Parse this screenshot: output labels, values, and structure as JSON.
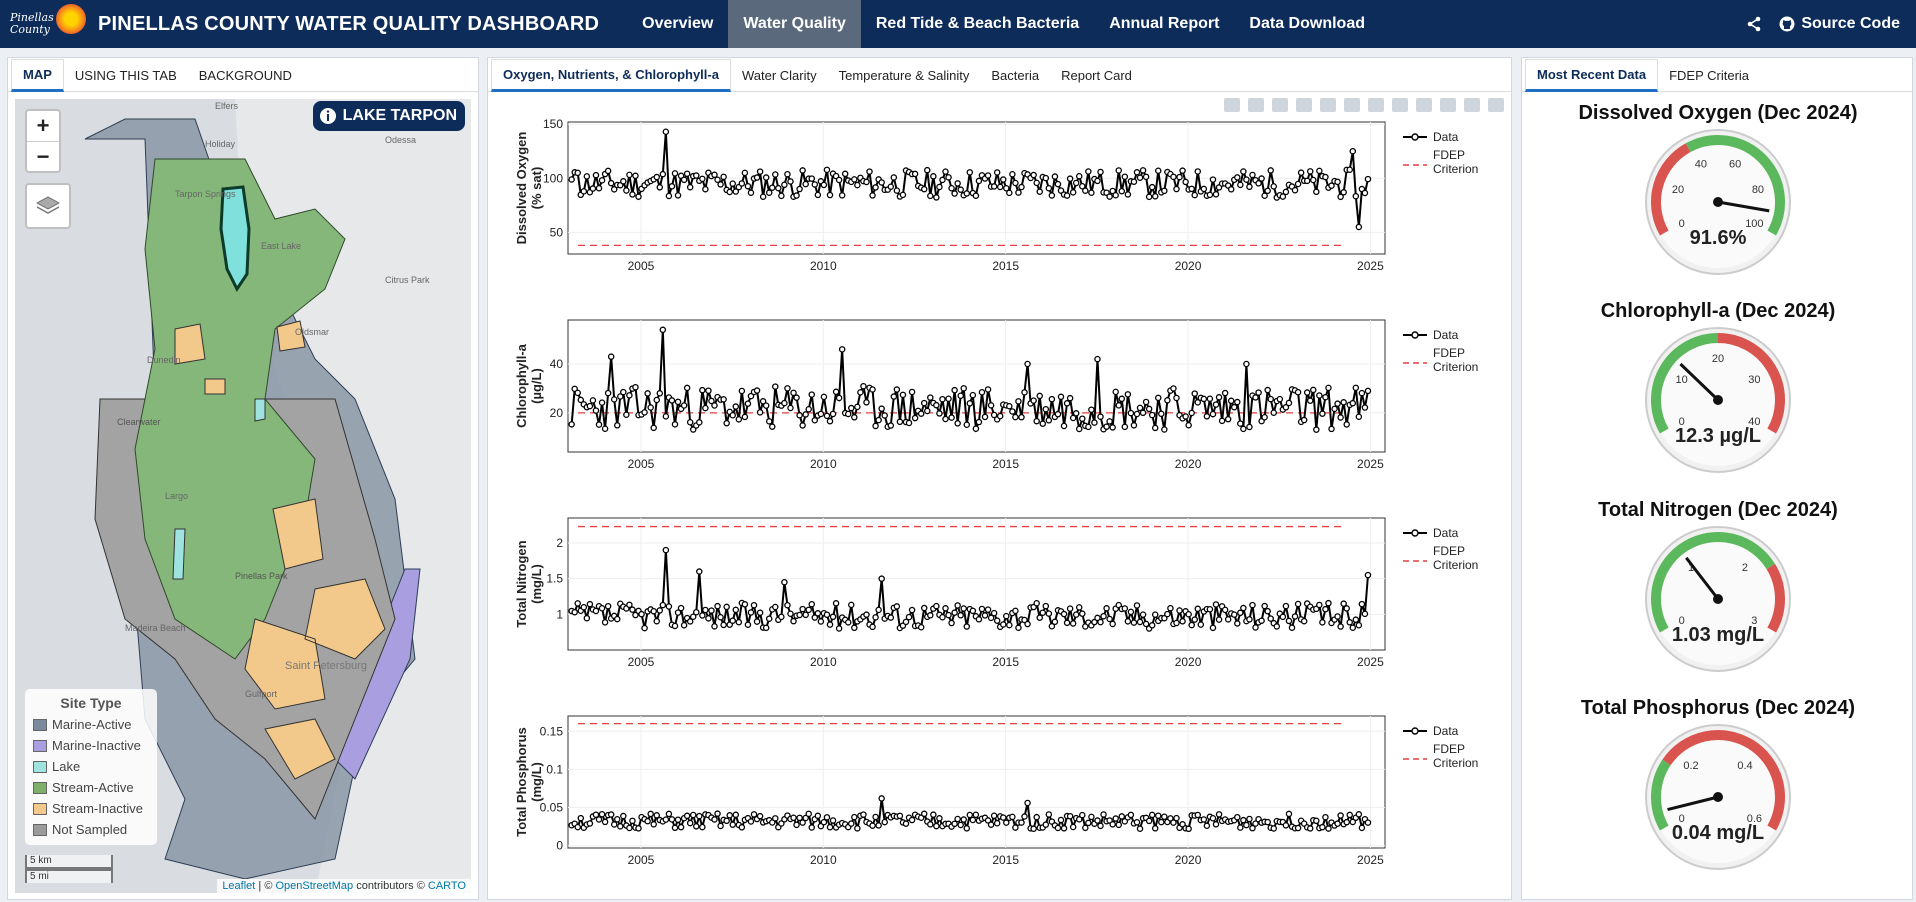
{
  "header": {
    "logo_text_1": "Pinellas",
    "logo_text_2": "County",
    "title": "PINELLAS COUNTY WATER QUALITY DASHBOARD",
    "nav": [
      "Overview",
      "Water Quality",
      "Red Tide & Beach Bacteria",
      "Annual Report",
      "Data Download"
    ],
    "active_nav": "Water Quality",
    "source_label": "Source Code"
  },
  "left_panel": {
    "tabs": [
      "MAP",
      "USING THIS TAB",
      "BACKGROUND"
    ],
    "site_label": "LAKE TARPON",
    "zoom_in": "+",
    "zoom_out": "−",
    "place_labels": [
      "Elfers",
      "Odessa",
      "Holiday",
      "Tarpon Springs",
      "East Lake",
      "Citrus Park",
      "Oldsmar",
      "Dunedin",
      "Clearwater",
      "Largo",
      "Pinellas Park",
      "Madeira Beach",
      "Saint Petersburg",
      "Gulfport"
    ],
    "legend": {
      "title": "Site Type",
      "items": [
        {
          "label": "Marine-Active",
          "color": "#7b8a9c"
        },
        {
          "label": "Marine-Inactive",
          "color": "#a99ee0"
        },
        {
          "label": "Lake",
          "color": "#9fe3e0"
        },
        {
          "label": "Stream-Active",
          "color": "#7fb069"
        },
        {
          "label": "Stream-Inactive",
          "color": "#f2c98b"
        },
        {
          "label": "Not Sampled",
          "color": "#9a9a9a"
        }
      ]
    },
    "scale_km": "5 km",
    "scale_mi": "5 mi",
    "attribution": {
      "leaflet": "Leaflet",
      "sep": " | © ",
      "osm": "OpenStreetMap",
      "contrib": " contributors © ",
      "carto": "CARTO"
    }
  },
  "center_panel": {
    "tabs": [
      "Oxygen, Nutrients, & Chlorophyll-a",
      "Water Clarity",
      "Temperature & Salinity",
      "Bacteria",
      "Report Card"
    ]
  },
  "chart_data": [
    {
      "type": "line",
      "ylabel": "Dissolved Oxygen (% sat)",
      "ylim": [
        30,
        152
      ],
      "yticks": [
        50,
        100,
        150
      ],
      "xlim": [
        2003,
        2025.4
      ],
      "xticks": [
        2005,
        2010,
        2015,
        2020,
        2025
      ],
      "criterion": 38,
      "legend": [
        "Data",
        "FDEP Criterion"
      ],
      "gen": {
        "seed": 11,
        "base": 95,
        "amp": 13,
        "min": 65,
        "max": 125
      },
      "spikes": [
        [
          2005.7,
          143
        ],
        [
          2024.7,
          55
        ],
        [
          2024.5,
          125
        ],
        [
          2003.3,
          105
        ]
      ]
    },
    {
      "type": "line",
      "ylabel": "Chlorophyll-a (µg/L)",
      "ylim": [
        4,
        58
      ],
      "yticks": [
        20,
        40
      ],
      "xlim": [
        2003,
        2025.4
      ],
      "xticks": [
        2005,
        2010,
        2015,
        2020,
        2025
      ],
      "criterion": 20,
      "legend": [
        "Data",
        "FDEP Criterion"
      ],
      "gen": {
        "seed": 23,
        "base": 22,
        "amp": 9,
        "min": 8,
        "max": 42
      },
      "spikes": [
        [
          2005.6,
          54
        ],
        [
          2010.5,
          46
        ],
        [
          2004.2,
          43
        ],
        [
          2015.6,
          40
        ],
        [
          2017.5,
          42
        ],
        [
          2021.6,
          40
        ]
      ]
    },
    {
      "type": "line",
      "ylabel": "Total Nitrogen (mg/L)",
      "ylim": [
        0.5,
        2.35
      ],
      "yticks": [
        1,
        1.5,
        2
      ],
      "ytick_labels": [
        "1",
        "1.5",
        "2"
      ],
      "xlim": [
        2003,
        2025.4
      ],
      "xticks": [
        2005,
        2010,
        2015,
        2020,
        2025
      ],
      "criterion": 2.23,
      "legend": [
        "Data",
        "FDEP Criterion"
      ],
      "gen": {
        "seed": 37,
        "base": 0.98,
        "amp": 0.18,
        "min": 0.7,
        "max": 1.3
      },
      "spikes": [
        [
          2005.7,
          1.9
        ],
        [
          2006.6,
          1.6
        ],
        [
          2011.6,
          1.5
        ],
        [
          2024.9,
          1.55
        ],
        [
          2008.9,
          1.45
        ]
      ]
    },
    {
      "type": "line",
      "ylabel": "Total Phosphorus (mg/L)",
      "ylim": [
        -0.003,
        0.17
      ],
      "yticks": [
        0,
        0.05,
        0.1,
        0.15
      ],
      "ytick_labels": [
        "0",
        "0.05",
        "0.1",
        "0.15"
      ],
      "xlim": [
        2003,
        2025.4
      ],
      "xticks": [
        2005,
        2010,
        2015,
        2020,
        2025
      ],
      "criterion": 0.16,
      "legend": [
        "Data",
        "FDEP Criterion"
      ],
      "gen": {
        "seed": 51,
        "base": 0.032,
        "amp": 0.01,
        "min": 0.012,
        "max": 0.058
      },
      "spikes": [
        [
          2011.6,
          0.062
        ],
        [
          2015.6,
          0.056
        ]
      ]
    }
  ],
  "right_panel": {
    "tabs": [
      "Most Recent Data",
      "FDEP Criteria"
    ],
    "gauges": [
      {
        "title": "Dissolved Oxygen (Dec 2024)",
        "value": 91.6,
        "value_label": "91.6%",
        "min": 0,
        "max": 100,
        "ticks": [
          "0",
          "20",
          "40",
          "60",
          "80",
          "100"
        ],
        "bands": [
          {
            "from": 0,
            "to": 38,
            "color": "#d9534f"
          },
          {
            "from": 38,
            "to": 100,
            "color": "#5cb85c"
          }
        ]
      },
      {
        "title": "Chlorophyll-a (Dec 2024)",
        "value": 12.3,
        "value_label": "12.3 µg/L",
        "min": 0,
        "max": 40,
        "ticks": [
          "0",
          "10",
          "20",
          "30",
          "40"
        ],
        "bands": [
          {
            "from": 0,
            "to": 20,
            "color": "#5cb85c"
          },
          {
            "from": 20,
            "to": 40,
            "color": "#d9534f"
          }
        ]
      },
      {
        "title": "Total Nitrogen (Dec 2024)",
        "value": 1.03,
        "value_label": "1.03 mg/L",
        "min": 0,
        "max": 3,
        "ticks": [
          "0",
          "1",
          "2",
          "3"
        ],
        "bands": [
          {
            "from": 0,
            "to": 2.23,
            "color": "#5cb85c"
          },
          {
            "from": 2.23,
            "to": 3,
            "color": "#d9534f"
          }
        ]
      },
      {
        "title": "Total Phosphorus (Dec 2024)",
        "value": 0.04,
        "value_label": "0.04 mg/L",
        "min": 0,
        "max": 0.6,
        "ticks": [
          "0",
          "0.2",
          "0.4",
          "0.6"
        ],
        "bands": [
          {
            "from": 0,
            "to": 0.16,
            "color": "#5cb85c"
          },
          {
            "from": 0.16,
            "to": 0.6,
            "color": "#d9534f"
          }
        ]
      }
    ]
  }
}
